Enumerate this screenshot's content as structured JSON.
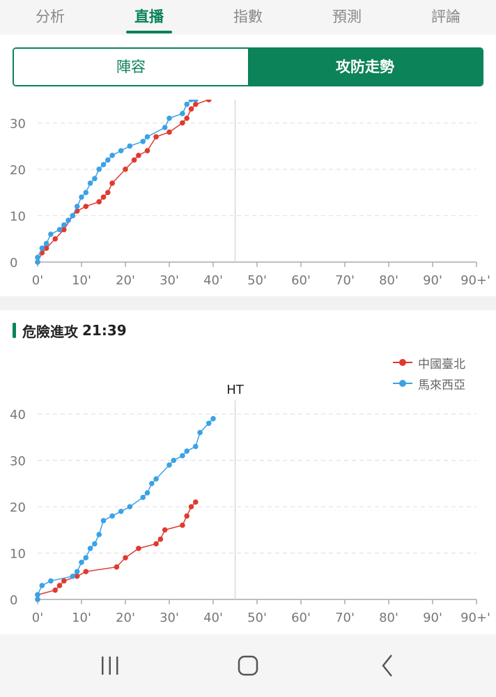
{
  "tabs": [
    {
      "label": "分析",
      "active": false
    },
    {
      "label": "直播",
      "active": true
    },
    {
      "label": "指數",
      "active": false
    },
    {
      "label": "預測",
      "active": false
    },
    {
      "label": "評論",
      "active": false
    }
  ],
  "segment": {
    "left_label": "陣容",
    "right_label": "攻防走勢",
    "selected": "right"
  },
  "colors": {
    "accent": "#0c8358",
    "team_home": "#e03a2e",
    "team_away": "#3ba2e6"
  },
  "chart_top": {
    "type": "line",
    "x_ticks": [
      "0'",
      "10'",
      "20'",
      "30'",
      "40'",
      "50'",
      "60'",
      "70'",
      "80'",
      "90'",
      "90+'"
    ],
    "y_ticks": [
      "0",
      "10",
      "20",
      "30"
    ],
    "xlim": [
      0,
      100
    ],
    "ylim": [
      0,
      35
    ],
    "halftime_x": 45,
    "series": [
      {
        "team": "home",
        "points": [
          [
            0,
            0
          ],
          [
            1,
            2
          ],
          [
            2,
            3
          ],
          [
            4,
            5
          ],
          [
            6,
            7
          ],
          [
            8,
            10
          ],
          [
            9,
            11
          ],
          [
            11,
            12
          ],
          [
            14,
            13
          ],
          [
            15,
            14
          ],
          [
            16,
            15
          ],
          [
            17,
            17
          ],
          [
            20,
            20
          ],
          [
            22,
            22
          ],
          [
            23,
            23
          ],
          [
            25,
            24
          ],
          [
            27,
            27
          ],
          [
            30,
            28
          ],
          [
            33,
            30
          ],
          [
            34,
            31
          ],
          [
            35,
            33
          ],
          [
            36,
            34
          ],
          [
            39,
            35
          ]
        ]
      },
      {
        "team": "away",
        "points": [
          [
            0,
            0
          ],
          [
            0,
            1
          ],
          [
            1,
            3
          ],
          [
            2,
            4
          ],
          [
            3,
            6
          ],
          [
            5,
            7
          ],
          [
            6,
            8
          ],
          [
            7,
            9
          ],
          [
            8,
            10
          ],
          [
            9,
            12
          ],
          [
            10,
            14
          ],
          [
            11,
            15
          ],
          [
            12,
            17
          ],
          [
            13,
            18
          ],
          [
            14,
            20
          ],
          [
            15,
            21
          ],
          [
            16,
            22
          ],
          [
            17,
            23
          ],
          [
            19,
            24
          ],
          [
            21,
            25
          ],
          [
            24,
            26
          ],
          [
            25,
            27
          ],
          [
            29,
            29
          ],
          [
            30,
            31
          ],
          [
            33,
            32
          ],
          [
            34,
            34
          ],
          [
            35,
            35
          ],
          [
            36,
            35
          ]
        ]
      }
    ]
  },
  "chart_data": {
    "type": "line",
    "title": "危險進攻 21:39",
    "x_ticks": [
      "0'",
      "10'",
      "20'",
      "30'",
      "40'",
      "50'",
      "60'",
      "70'",
      "80'",
      "90'",
      "90+'"
    ],
    "y_ticks": [
      "0",
      "10",
      "20",
      "30",
      "40"
    ],
    "xlim": [
      0,
      100
    ],
    "ylim": [
      0,
      40
    ],
    "halftime_x": 45,
    "halftime_label": "HT",
    "legend_position": "top-right",
    "series": [
      {
        "name": "中國臺北",
        "team": "home",
        "points": [
          [
            0,
            0
          ],
          [
            0,
            1
          ],
          [
            4,
            2
          ],
          [
            5,
            3
          ],
          [
            6,
            4
          ],
          [
            9,
            5
          ],
          [
            11,
            6
          ],
          [
            18,
            7
          ],
          [
            20,
            9
          ],
          [
            23,
            11
          ],
          [
            27,
            12
          ],
          [
            28,
            13
          ],
          [
            29,
            15
          ],
          [
            33,
            16
          ],
          [
            34,
            18
          ],
          [
            35,
            20
          ],
          [
            36,
            21
          ]
        ]
      },
      {
        "name": "馬來西亞",
        "team": "away",
        "points": [
          [
            0,
            0
          ],
          [
            0,
            1
          ],
          [
            1,
            3
          ],
          [
            3,
            4
          ],
          [
            8,
            5
          ],
          [
            9,
            6
          ],
          [
            10,
            8
          ],
          [
            11,
            9
          ],
          [
            12,
            11
          ],
          [
            13,
            12
          ],
          [
            14,
            14
          ],
          [
            15,
            17
          ],
          [
            17,
            18
          ],
          [
            19,
            19
          ],
          [
            21,
            20
          ],
          [
            24,
            22
          ],
          [
            25,
            23
          ],
          [
            26,
            25
          ],
          [
            27,
            26
          ],
          [
            30,
            29
          ],
          [
            31,
            30
          ],
          [
            33,
            31
          ],
          [
            34,
            32
          ],
          [
            36,
            33
          ],
          [
            37,
            36
          ],
          [
            39,
            38
          ],
          [
            40,
            39
          ]
        ]
      }
    ]
  },
  "section": {
    "title": "危險進攻",
    "score": "21:39"
  },
  "navbar": {
    "icons": [
      "recent-apps-icon",
      "home-icon",
      "back-icon"
    ]
  }
}
